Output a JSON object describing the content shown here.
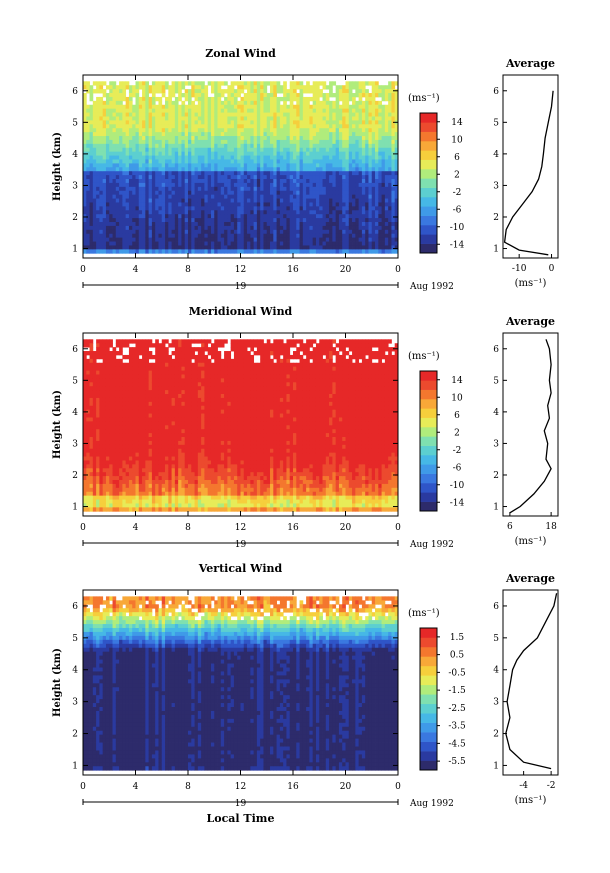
{
  "figure": {
    "time_axis_label": "Local Time",
    "date_label": "Aug 1992",
    "date_day": "19"
  },
  "colormap": [
    "#2d2b6b",
    "#2a3aa0",
    "#2f55c8",
    "#3a78e0",
    "#3f9ae8",
    "#46b8e6",
    "#5ccfd0",
    "#7fe0b0",
    "#b0ec7c",
    "#e7ec58",
    "#f6cf3c",
    "#f8a838",
    "#f4772e",
    "#ec4a2e",
    "#e62828"
  ],
  "chart_data": [
    {
      "type": "heatmap",
      "title": "Zonal Wind",
      "ylabel": "Height (km)",
      "x_ticks": [
        "0",
        "4",
        "8",
        "12",
        "16",
        "20",
        "0"
      ],
      "xlim": [
        0,
        24
      ],
      "y_ticks": [
        "1",
        "2",
        "3",
        "4",
        "5",
        "6"
      ],
      "ylim": [
        0.7,
        6.5
      ],
      "colorbar": {
        "unit": "(ms⁻¹)",
        "ticks": [
          "14",
          "10",
          "6",
          "2",
          "-2",
          "-6",
          "-10",
          "-14"
        ],
        "range": [
          -16,
          16
        ]
      },
      "field": {
        "low_value": -14,
        "mid_value": -6,
        "high_value": 4,
        "transition_height": 3.4
      },
      "average": {
        "title": "Average",
        "xlabel": "(ms⁻¹)",
        "x_ticks": [
          "-10",
          "0"
        ],
        "xlim": [
          -15,
          2
        ],
        "y_ticks": [
          "1",
          "2",
          "3",
          "4",
          "5",
          "6"
        ],
        "ylim": [
          0.7,
          6.5
        ],
        "profile": [
          [
            0.8,
            -1.0
          ],
          [
            0.95,
            -10.0
          ],
          [
            1.2,
            -14.5
          ],
          [
            1.6,
            -14.0
          ],
          [
            2.0,
            -12.0
          ],
          [
            2.4,
            -9.0
          ],
          [
            2.8,
            -6.0
          ],
          [
            3.2,
            -4.0
          ],
          [
            3.6,
            -3.0
          ],
          [
            4.0,
            -2.5
          ],
          [
            4.5,
            -2.0
          ],
          [
            5.0,
            -1.0
          ],
          [
            5.5,
            0.0
          ],
          [
            6.0,
            0.5
          ]
        ]
      }
    },
    {
      "type": "heatmap",
      "title": "Meridional Wind",
      "ylabel": "Height (km)",
      "x_ticks": [
        "0",
        "4",
        "8",
        "12",
        "16",
        "20",
        "0"
      ],
      "xlim": [
        0,
        24
      ],
      "y_ticks": [
        "1",
        "2",
        "3",
        "4",
        "5",
        "6"
      ],
      "ylim": [
        0.7,
        6.5
      ],
      "colorbar": {
        "unit": "(ms⁻¹)",
        "ticks": [
          "14",
          "10",
          "6",
          "2",
          "-2",
          "-6",
          "-10",
          "-14"
        ],
        "range": [
          -16,
          16
        ]
      },
      "field": {
        "low_value": 4,
        "mid_value": 10,
        "high_value": 16,
        "transition_height": 1.3
      },
      "average": {
        "title": "Average",
        "xlabel": "(ms⁻¹)",
        "x_ticks": [
          "6",
          "18"
        ],
        "xlim": [
          4,
          20
        ],
        "y_ticks": [
          "1",
          "2",
          "3",
          "4",
          "5",
          "6"
        ],
        "ylim": [
          0.7,
          6.5
        ],
        "profile": [
          [
            0.8,
            6.0
          ],
          [
            1.0,
            9.0
          ],
          [
            1.4,
            13.0
          ],
          [
            1.8,
            16.0
          ],
          [
            2.2,
            18.0
          ],
          [
            2.5,
            16.5
          ],
          [
            3.0,
            17.0
          ],
          [
            3.4,
            16.0
          ],
          [
            3.8,
            17.5
          ],
          [
            4.2,
            17.0
          ],
          [
            4.6,
            18.0
          ],
          [
            5.0,
            17.5
          ],
          [
            5.5,
            18.0
          ],
          [
            6.0,
            17.5
          ],
          [
            6.3,
            16.5
          ]
        ]
      }
    },
    {
      "type": "heatmap",
      "title": "Vertical Wind",
      "ylabel": "Height (km)",
      "x_ticks": [
        "0",
        "4",
        "8",
        "12",
        "16",
        "20",
        "0"
      ],
      "xlim": [
        0,
        24
      ],
      "y_ticks": [
        "1",
        "2",
        "3",
        "4",
        "5",
        "6"
      ],
      "ylim": [
        0.7,
        6.5
      ],
      "colorbar": {
        "unit": "(ms⁻¹)",
        "ticks": [
          "1.5",
          "0.5",
          "-0.5",
          "-1.5",
          "-2.5",
          "-3.5",
          "-4.5",
          "-5.5"
        ],
        "range": [
          -6,
          2
        ]
      },
      "field": {
        "low_value": -5.8,
        "mid_value": -5.5,
        "high_value": 0.5,
        "transition_height": 4.6
      },
      "average": {
        "title": "Average",
        "xlabel": "(ms⁻¹)",
        "x_ticks": [
          "-4",
          "-2"
        ],
        "xlim": [
          -5.5,
          -1.5
        ],
        "y_ticks": [
          "1",
          "2",
          "3",
          "4",
          "5",
          "6"
        ],
        "ylim": [
          0.7,
          6.5
        ],
        "profile": [
          [
            0.9,
            -2.0
          ],
          [
            1.1,
            -4.0
          ],
          [
            1.5,
            -5.0
          ],
          [
            2.0,
            -5.3
          ],
          [
            2.5,
            -5.0
          ],
          [
            3.0,
            -5.2
          ],
          [
            3.5,
            -5.0
          ],
          [
            4.0,
            -4.8
          ],
          [
            4.3,
            -4.5
          ],
          [
            4.6,
            -4.0
          ],
          [
            5.0,
            -3.0
          ],
          [
            5.5,
            -2.4
          ],
          [
            6.0,
            -1.8
          ],
          [
            6.4,
            -1.6
          ]
        ]
      }
    }
  ]
}
